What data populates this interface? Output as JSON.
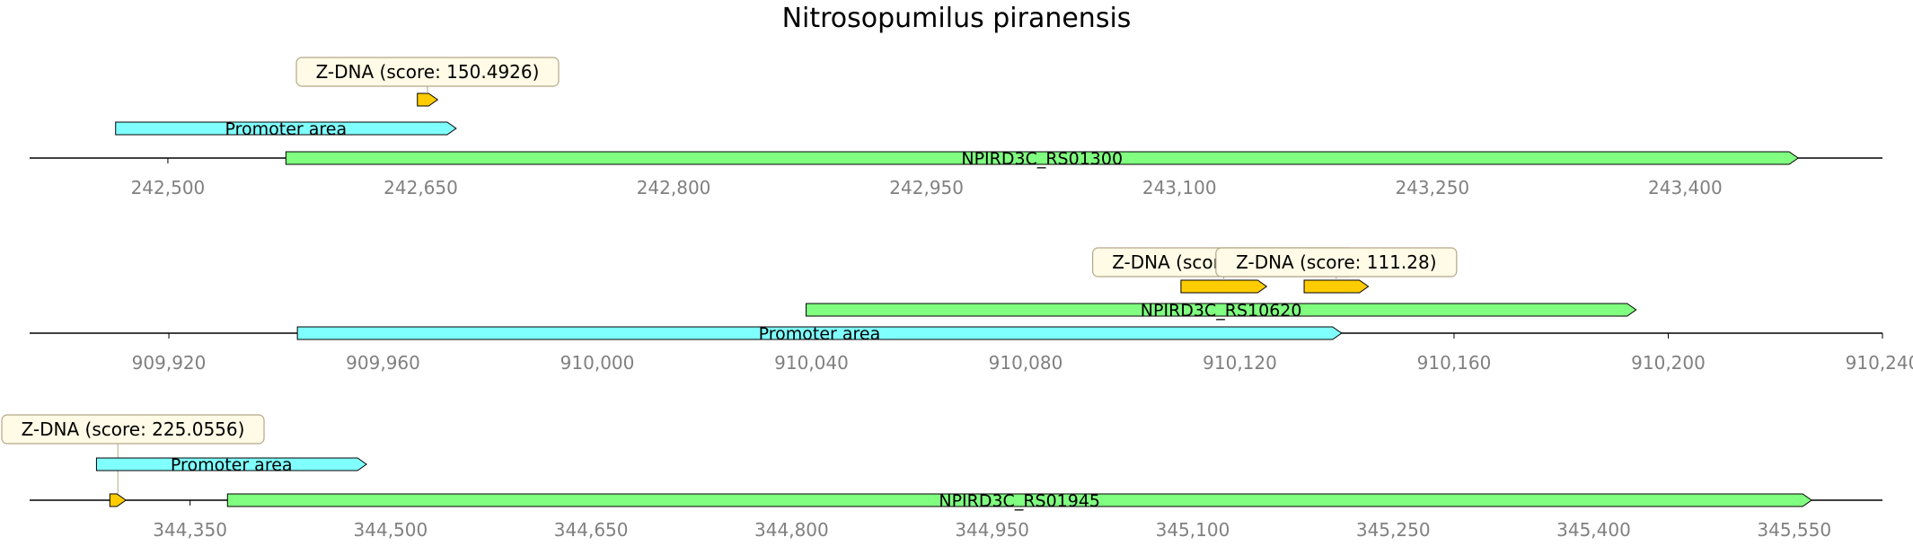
{
  "title": "Nitrosopumilus piranensis",
  "colors": {
    "gene": "#80ff80",
    "promoter": "#80ffff",
    "zdna": "#ffcc00",
    "annotation_bg": "#fffbe6",
    "annotation_border": "#b3a78a",
    "axis": "#000000",
    "tick_text": "#808080"
  },
  "chart_data": [
    {
      "type": "diagram",
      "axis_range": [
        242418,
        243517
      ],
      "ticks": [
        242500,
        242650,
        242800,
        242950,
        243100,
        243250,
        243400
      ],
      "tick_labels": [
        "242,500",
        "242,650",
        "242,800",
        "242,950",
        "243,100",
        "243,250",
        "243,400"
      ],
      "features": [
        {
          "kind": "zdna",
          "start": 242648,
          "end": 242660,
          "level": 2,
          "label": "",
          "annotation": "Z-DNA (score: 150.4926)"
        },
        {
          "kind": "promoter",
          "start": 242469,
          "end": 242671,
          "level": 1,
          "label": "Promoter area"
        },
        {
          "kind": "gene",
          "start": 242570,
          "end": 243467,
          "level": 0,
          "label": "NPIRD3C_RS01300"
        }
      ]
    },
    {
      "type": "diagram",
      "axis_range": [
        909894,
        910240
      ],
      "ticks": [
        909920,
        909960,
        910000,
        910040,
        910080,
        910120,
        910160,
        910200,
        910240
      ],
      "tick_labels": [
        "909,920",
        "909,960",
        "910,000",
        "910,040",
        "910,080",
        "910,120",
        "910,160",
        "910,200",
        "910,240"
      ],
      "features": [
        {
          "kind": "zdna",
          "start": 910109,
          "end": 910125,
          "level": 2,
          "label": "",
          "annotation": "Z-DNA (score: 1273.964)"
        },
        {
          "kind": "zdna",
          "start": 910132,
          "end": 910144,
          "level": 2,
          "label": "",
          "annotation": "Z-DNA (score: 111.28)"
        },
        {
          "kind": "gene",
          "start": 910039,
          "end": 910194,
          "level": 1,
          "label": "NPIRD3C_RS10620"
        },
        {
          "kind": "promoter",
          "start": 909944,
          "end": 910139,
          "level": 0,
          "label": "Promoter area"
        }
      ]
    },
    {
      "type": "diagram",
      "axis_range": [
        344230,
        345616
      ],
      "ticks": [
        344350,
        344500,
        344650,
        344800,
        344950,
        345100,
        345250,
        345400,
        345550
      ],
      "tick_labels": [
        "344,350",
        "344,500",
        "344,650",
        "344,800",
        "344,950",
        "345,100",
        "345,250",
        "345,400",
        "345,550"
      ],
      "features": [
        {
          "kind": "zdna",
          "start": 344290,
          "end": 344302,
          "level": 0,
          "label": "",
          "annotation": "Z-DNA (score: 225.0556)"
        },
        {
          "kind": "promoter",
          "start": 344280,
          "end": 344482,
          "level": 1,
          "label": "Promoter area"
        },
        {
          "kind": "gene",
          "start": 344378,
          "end": 345563,
          "level": 0,
          "label": "NPIRD3C_RS01945"
        }
      ]
    }
  ]
}
